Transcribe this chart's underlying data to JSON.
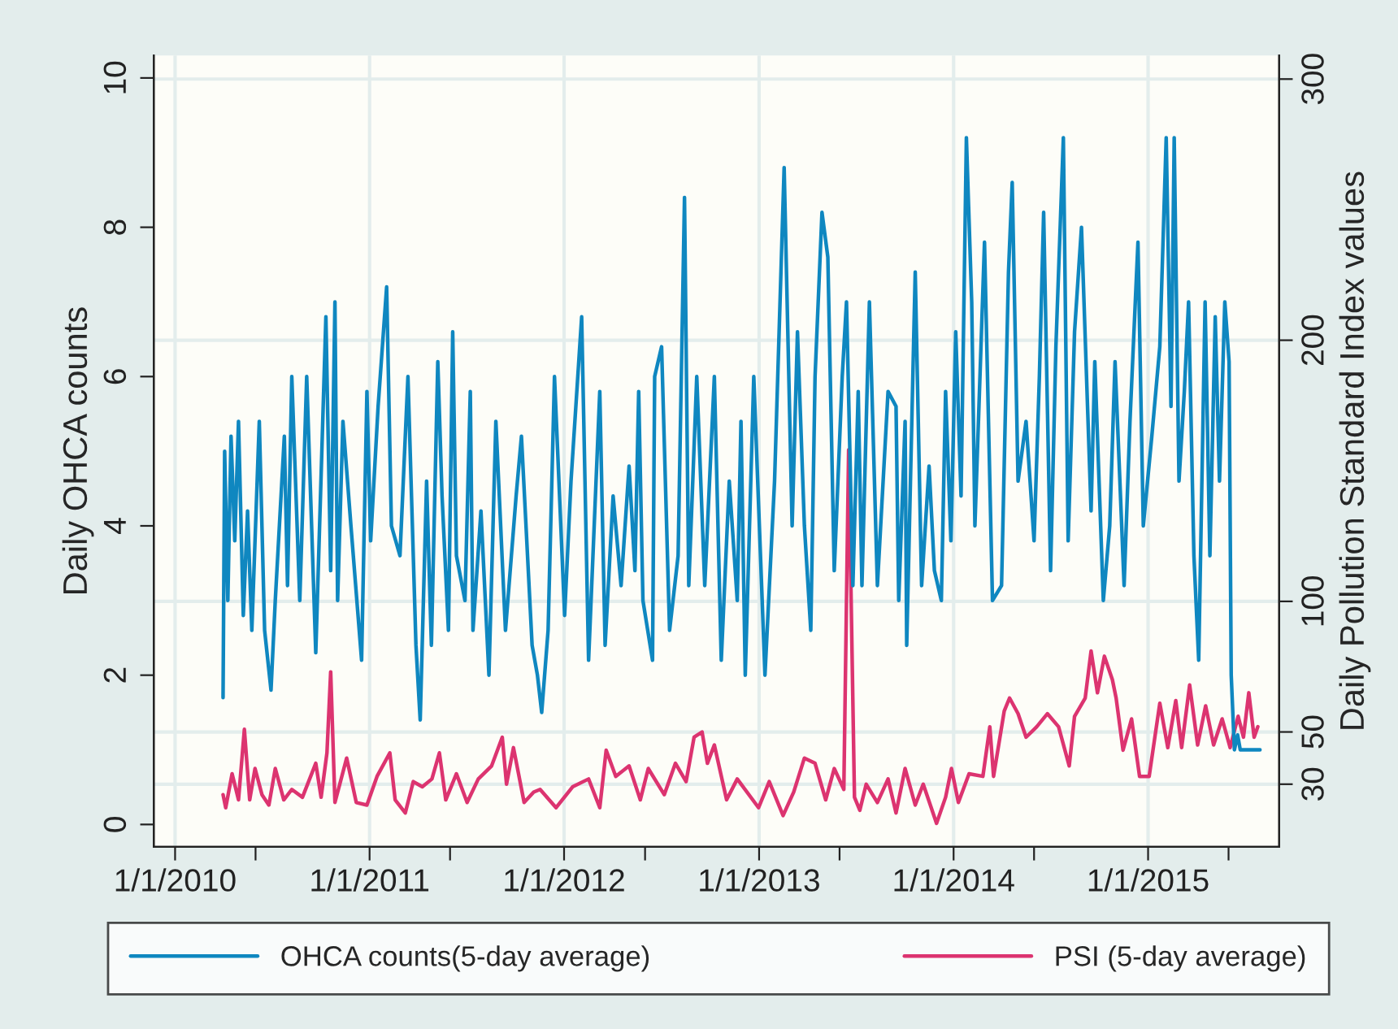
{
  "chart_data": {
    "type": "line",
    "xlabel": null,
    "ylabel": "Daily OHCA counts",
    "y2label": "Daily Pollution Standard Index values",
    "xlim": [
      "2009-11-22",
      "2015-09-04"
    ],
    "xticks": [
      {
        "value": "2010-01-01",
        "label": "1/1/2010"
      },
      {
        "value": "2010-06-01",
        "label": null
      },
      {
        "value": "2011-01-01",
        "label": "1/1/2011"
      },
      {
        "value": "2011-06-01",
        "label": null
      },
      {
        "value": "2012-01-01",
        "label": "1/1/2012"
      },
      {
        "value": "2012-06-01",
        "label": null
      },
      {
        "value": "2013-01-01",
        "label": "1/1/2013"
      },
      {
        "value": "2013-06-01",
        "label": null
      },
      {
        "value": "2014-01-01",
        "label": "1/1/2014"
      },
      {
        "value": "2014-06-01",
        "label": null
      },
      {
        "value": "2015-01-01",
        "label": "1/1/2015"
      },
      {
        "value": "2015-06-01",
        "label": null
      }
    ],
    "ylim": [
      -0.3,
      10.3
    ],
    "yticks": [
      0,
      2,
      4,
      6,
      8,
      10
    ],
    "y2lim": [
      6,
      309
    ],
    "y2ticks": [
      30,
      50,
      100,
      200,
      300
    ],
    "grid": true,
    "legend": "bottom",
    "marker": "none",
    "line_style": "solid",
    "series": [
      {
        "name": "OHCA counts(5-day average)",
        "color": "#0f87c0",
        "x": [
          "2010-04-01",
          "2010-04-04",
          "2010-04-10",
          "2010-04-16",
          "2010-04-23",
          "2010-04-30",
          "2010-05-09",
          "2010-05-17",
          "2010-05-25",
          "2010-06-08",
          "2010-06-18",
          "2010-06-30",
          "2010-07-08",
          "2010-07-25",
          "2010-07-31",
          "2010-08-08",
          "2010-08-23",
          "2010-09-05",
          "2010-09-22",
          "2010-10-11",
          "2010-10-20",
          "2010-10-28",
          "2010-11-02",
          "2010-11-12",
          "2010-11-27",
          "2010-12-17",
          "2010-12-27",
          "2011-01-03",
          "2011-01-17",
          "2011-02-02",
          "2011-02-11",
          "2011-02-27",
          "2011-03-14",
          "2011-03-29",
          "2011-04-06",
          "2011-04-18",
          "2011-04-27",
          "2011-05-09",
          "2011-05-17",
          "2011-05-29",
          "2011-06-06",
          "2011-06-13",
          "2011-06-29",
          "2011-07-09",
          "2011-07-14",
          "2011-07-29",
          "2011-08-13",
          "2011-08-26",
          "2011-09-13",
          "2011-10-03",
          "2011-10-13",
          "2011-11-02",
          "2011-11-12",
          "2011-11-20",
          "2011-12-02",
          "2011-12-14",
          "2012-01-02",
          "2012-01-14",
          "2012-02-03",
          "2012-02-16",
          "2012-03-08",
          "2012-03-18",
          "2012-04-02",
          "2012-04-17",
          "2012-05-02",
          "2012-05-13",
          "2012-05-20",
          "2012-05-28",
          "2012-06-15",
          "2012-06-19",
          "2012-07-02",
          "2012-07-17",
          "2012-08-02",
          "2012-08-14",
          "2012-08-22",
          "2012-09-06",
          "2012-09-21",
          "2012-10-09",
          "2012-10-22",
          "2012-11-06",
          "2012-11-21",
          "2012-11-28",
          "2012-12-06",
          "2012-12-22",
          "2013-01-12",
          "2013-01-30",
          "2013-02-17",
          "2013-03-04",
          "2013-03-14",
          "2013-03-27",
          "2013-04-08",
          "2013-04-16",
          "2013-04-29",
          "2013-05-10",
          "2013-05-22",
          "2013-06-06",
          "2013-06-14",
          "2013-06-26",
          "2013-07-06",
          "2013-07-13",
          "2013-07-27",
          "2013-08-11",
          "2013-08-31",
          "2013-09-15",
          "2013-09-20",
          "2013-10-02",
          "2013-10-05",
          "2013-10-21",
          "2013-11-02",
          "2013-11-16",
          "2013-11-26",
          "2013-12-09",
          "2013-12-17",
          "2013-12-27",
          "2014-01-05",
          "2014-01-15",
          "2014-01-25",
          "2014-02-04",
          "2014-02-10",
          "2014-02-28",
          "2014-03-15",
          "2014-04-01",
          "2014-04-14",
          "2014-04-21",
          "2014-05-02",
          "2014-05-17",
          "2014-06-01",
          "2014-06-11",
          "2014-06-19",
          "2014-07-02",
          "2014-07-12",
          "2014-07-26",
          "2014-08-04",
          "2014-08-16",
          "2014-08-29",
          "2014-09-16",
          "2014-09-23",
          "2014-10-09",
          "2014-10-21",
          "2014-10-31",
          "2014-11-17",
          "2014-11-28",
          "2014-12-13",
          "2014-12-23",
          "2015-01-08",
          "2015-01-23",
          "2015-02-04",
          "2015-02-13",
          "2015-02-19",
          "2015-02-28",
          "2015-03-10",
          "2015-03-18",
          "2015-03-28",
          "2015-04-06",
          "2015-04-18",
          "2015-04-27",
          "2015-05-07",
          "2015-05-15",
          "2015-05-25",
          "2015-06-02",
          "2015-06-06",
          "2015-06-12",
          "2015-06-18",
          "2015-06-23",
          "2015-07-30"
        ],
        "values": [
          1.7,
          5.0,
          3.0,
          5.2,
          3.8,
          5.4,
          2.8,
          4.2,
          2.6,
          5.4,
          2.6,
          1.8,
          3.0,
          5.2,
          3.2,
          6.0,
          3.0,
          6.0,
          2.3,
          6.8,
          3.4,
          7.0,
          3.0,
          5.4,
          4.0,
          2.2,
          5.8,
          3.8,
          5.6,
          7.2,
          4.0,
          3.6,
          6.0,
          2.4,
          1.4,
          4.6,
          2.4,
          6.2,
          4.4,
          2.6,
          6.6,
          3.6,
          3.0,
          5.8,
          2.6,
          4.2,
          2.0,
          5.4,
          2.6,
          4.4,
          5.2,
          2.4,
          2.0,
          1.5,
          2.6,
          6.0,
          2.8,
          4.6,
          6.8,
          2.2,
          5.8,
          2.4,
          4.4,
          3.2,
          4.8,
          3.4,
          5.8,
          3.0,
          2.2,
          6.0,
          6.4,
          2.6,
          3.6,
          8.4,
          3.2,
          6.0,
          3.2,
          6.0,
          2.2,
          4.6,
          3.0,
          5.4,
          2.0,
          6.0,
          2.0,
          4.6,
          8.8,
          4.0,
          6.6,
          4.0,
          2.6,
          6.0,
          8.2,
          7.6,
          3.4,
          6.0,
          7.0,
          3.2,
          5.8,
          3.2,
          7.0,
          3.2,
          5.8,
          5.6,
          3.0,
          5.4,
          2.4,
          7.4,
          3.2,
          4.8,
          3.4,
          3.0,
          5.8,
          3.8,
          6.6,
          4.4,
          9.2,
          7.0,
          4.0,
          7.8,
          3.0,
          3.2,
          7.4,
          8.6,
          4.6,
          5.4,
          3.8,
          6.0,
          8.2,
          3.4,
          6.4,
          9.2,
          3.8,
          6.6,
          8.0,
          4.2,
          6.2,
          3.0,
          4.0,
          6.2,
          3.2,
          5.4,
          7.8,
          4.0,
          5.2,
          6.4,
          9.2,
          5.6,
          9.2,
          4.6,
          5.8,
          7.0,
          3.6,
          2.2,
          7.0,
          3.6,
          6.8,
          4.6,
          7.0,
          6.2,
          2.0,
          1.0,
          1.2,
          1.0,
          1.0
        ]
      },
      {
        "name": "PSI (5-day average)",
        "color": "#dc3470",
        "axis": "y2",
        "x": [
          "2010-04-01",
          "2010-04-06",
          "2010-04-18",
          "2010-04-30",
          "2010-05-11",
          "2010-05-21",
          "2010-05-31",
          "2010-06-13",
          "2010-06-26",
          "2010-07-08",
          "2010-07-24",
          "2010-08-08",
          "2010-08-28",
          "2010-09-22",
          "2010-10-02",
          "2010-10-13",
          "2010-10-20",
          "2010-10-28",
          "2010-11-19",
          "2010-12-07",
          "2010-12-27",
          "2011-01-15",
          "2011-02-08",
          "2011-02-18",
          "2011-03-09",
          "2011-03-24",
          "2011-04-10",
          "2011-04-28",
          "2011-05-12",
          "2011-05-24",
          "2011-06-13",
          "2011-07-03",
          "2011-07-24",
          "2011-08-18",
          "2011-09-07",
          "2011-09-15",
          "2011-09-28",
          "2011-10-18",
          "2011-11-05",
          "2011-11-17",
          "2011-12-17",
          "2012-01-17",
          "2012-02-16",
          "2012-03-08",
          "2012-03-20",
          "2012-04-07",
          "2012-05-02",
          "2012-05-23",
          "2012-06-07",
          "2012-07-07",
          "2012-07-28",
          "2012-08-17",
          "2012-09-01",
          "2012-09-16",
          "2012-09-26",
          "2012-10-09",
          "2012-11-01",
          "2012-11-21",
          "2012-12-31",
          "2013-01-20",
          "2013-02-15",
          "2013-03-07",
          "2013-03-27",
          "2013-04-16",
          "2013-05-06",
          "2013-05-22",
          "2013-06-09",
          "2013-06-18",
          "2013-06-29",
          "2013-07-09",
          "2013-07-21",
          "2013-08-11",
          "2013-08-31",
          "2013-09-15",
          "2013-10-02",
          "2013-10-21",
          "2013-11-05",
          "2013-11-30",
          "2013-12-17",
          "2013-12-28",
          "2014-01-10",
          "2014-01-30",
          "2014-02-25",
          "2014-03-10",
          "2014-03-17",
          "2014-04-06",
          "2014-04-16",
          "2014-05-02",
          "2014-05-17",
          "2014-06-06",
          "2014-06-26",
          "2014-07-17",
          "2014-08-06",
          "2014-08-16",
          "2014-09-05",
          "2014-09-16",
          "2014-09-28",
          "2014-10-11",
          "2014-10-26",
          "2014-11-02",
          "2014-11-15",
          "2014-12-01",
          "2014-12-16",
          "2015-01-03",
          "2015-01-23",
          "2015-02-07",
          "2015-02-22",
          "2015-03-05",
          "2015-03-20",
          "2015-04-04",
          "2015-04-19",
          "2015-05-04",
          "2015-05-20",
          "2015-06-04",
          "2015-06-19",
          "2015-06-29",
          "2015-07-09",
          "2015-07-19",
          "2015-07-26"
        ],
        "values": [
          26,
          21,
          34,
          24,
          51,
          24,
          36,
          26,
          22,
          36,
          24,
          28,
          25,
          38,
          25,
          42,
          73,
          23,
          40,
          23,
          22,
          33,
          42,
          24,
          19,
          31,
          29,
          32,
          42,
          24,
          34,
          23,
          32,
          37,
          48,
          30,
          44,
          23,
          27,
          28,
          21,
          29,
          32,
          21,
          43,
          33,
          37,
          24,
          36,
          26,
          38,
          31,
          48,
          50,
          38,
          45,
          24,
          32,
          21,
          31,
          18,
          27,
          40,
          38,
          24,
          36,
          28,
          158,
          25,
          20,
          30,
          23,
          32,
          19,
          36,
          22,
          30,
          15,
          25,
          36,
          23,
          34,
          33,
          52,
          33,
          58,
          63,
          57,
          48,
          52,
          57,
          52,
          37,
          56,
          63,
          81,
          65,
          79,
          70,
          63,
          43,
          55,
          33,
          33,
          61,
          44,
          62,
          44,
          68,
          45,
          60,
          45,
          55,
          44,
          56,
          48,
          65,
          48,
          52
        ]
      }
    ]
  }
}
